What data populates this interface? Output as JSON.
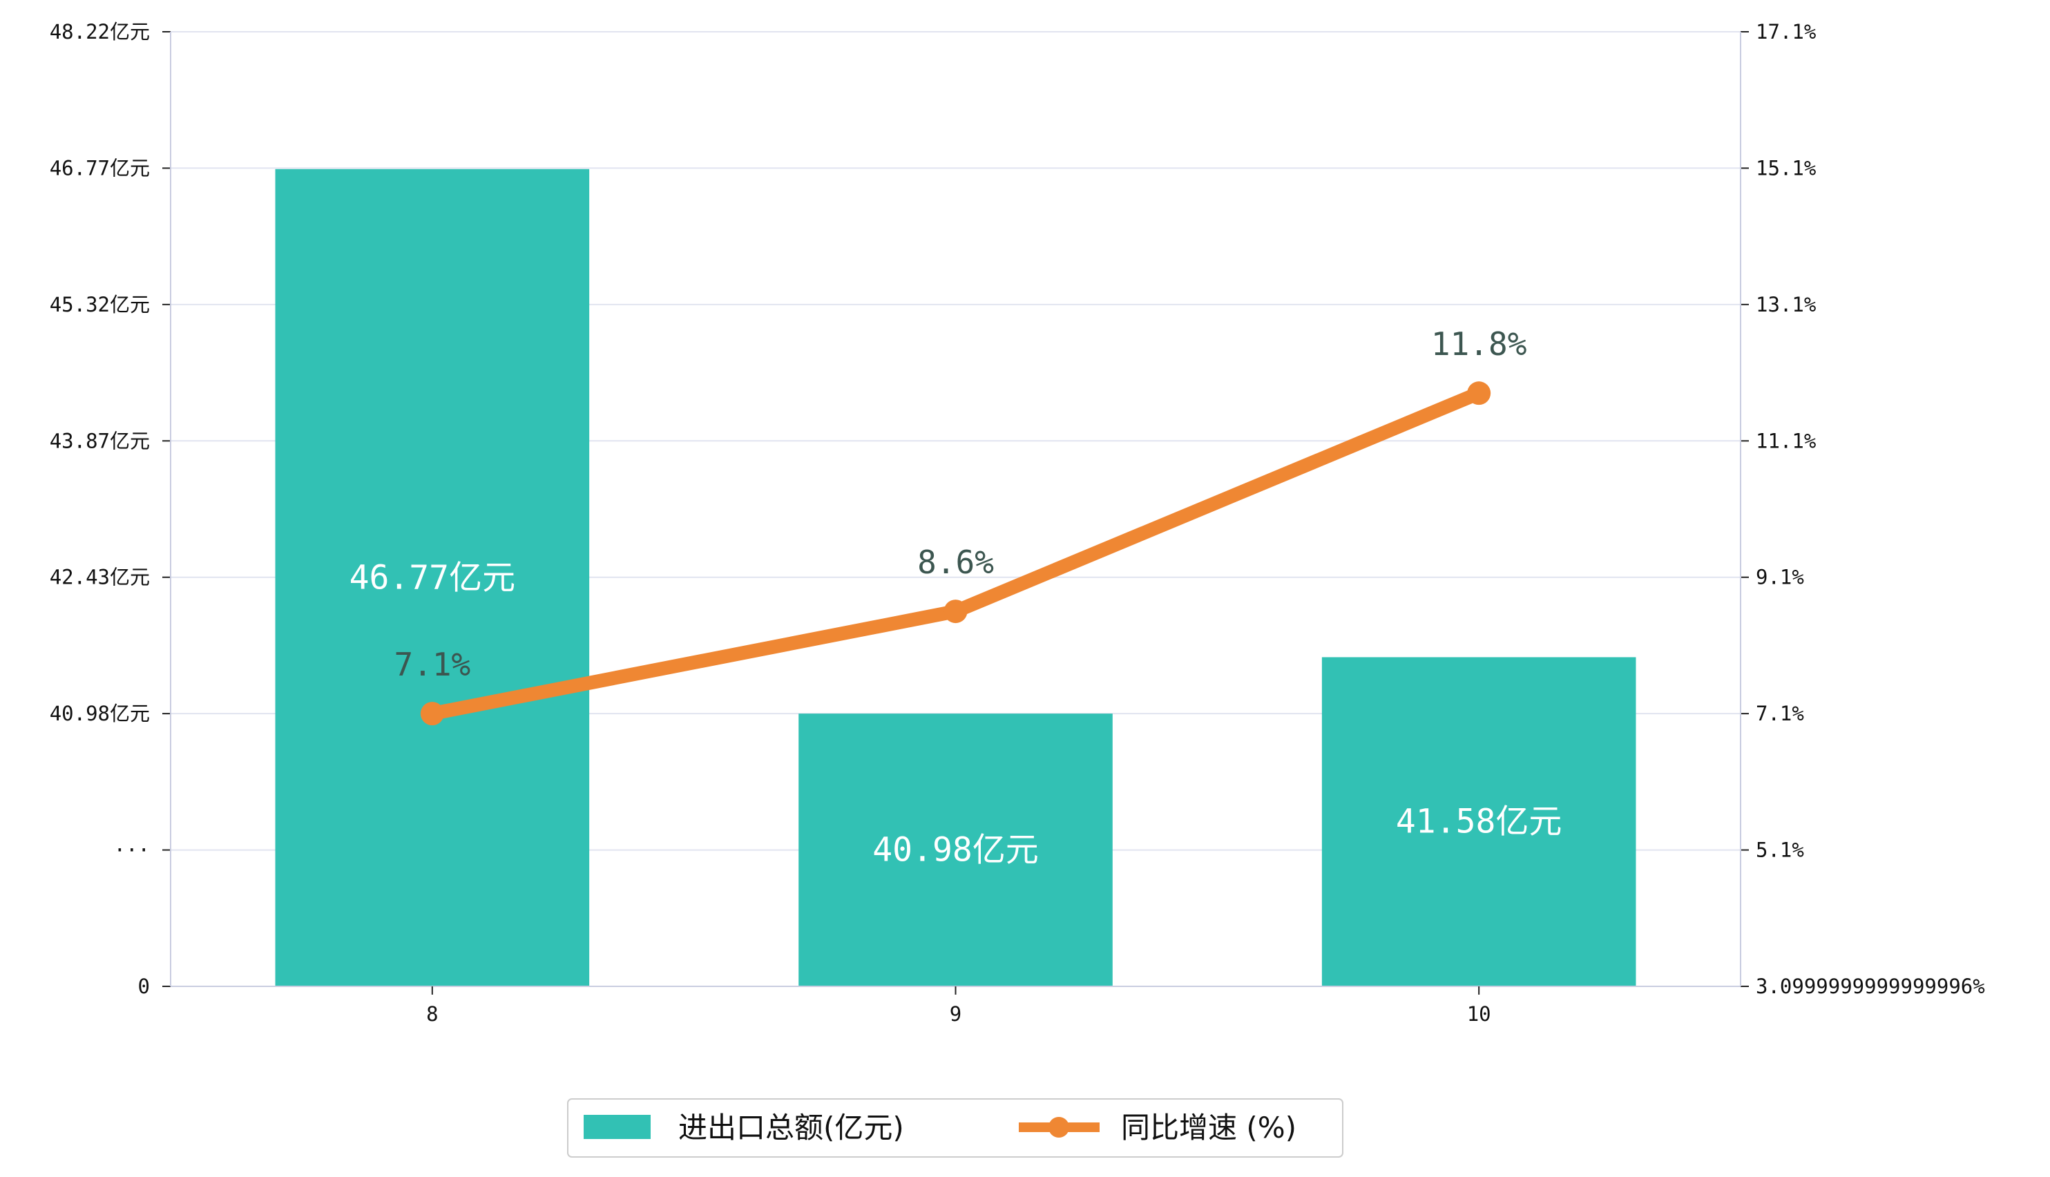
{
  "chart_data": {
    "type": "bar",
    "categories": [
      "8",
      "9",
      "10"
    ],
    "series": [
      {
        "name": "进出口总额(亿元)",
        "type": "bar",
        "axis": "left",
        "color": "#32c1b4",
        "values": [
          46.77,
          40.98,
          41.58
        ],
        "labels": [
          "46.77亿元",
          "40.98亿元",
          "41.58亿元"
        ]
      },
      {
        "name": "同比增速 (%)",
        "type": "line",
        "axis": "right",
        "color": "#ef8733",
        "values": [
          7.1,
          8.6,
          11.8
        ],
        "labels": [
          "7.1%",
          "8.6%",
          "11.8%"
        ]
      }
    ],
    "left_axis": {
      "ticks": [
        0,
        1,
        40.98,
        42.43,
        43.87,
        45.32,
        46.77,
        48.22
      ],
      "tick_labels": [
        "0",
        "···",
        "40.98亿元",
        "42.43亿元",
        "43.87亿元",
        "45.32亿元",
        "46.77亿元",
        "48.22亿元"
      ],
      "axis_break": "···"
    },
    "right_axis": {
      "ylim": [
        3.0999999999999996,
        17.1
      ],
      "ticks": [
        3.0999999999999996,
        5.1,
        7.1,
        9.1,
        11.1,
        13.1,
        15.1,
        17.1
      ],
      "tick_labels": [
        "3.0999999999999996%",
        "5.1%",
        "7.1%",
        "9.1%",
        "11.1%",
        "13.1%",
        "15.1%",
        "17.1%"
      ]
    },
    "grid": true,
    "legend_position": "bottom-center",
    "colors": {
      "bar": "#32c1b4",
      "line": "#ef8733",
      "grid": "#e1e4f0",
      "axis": "#c9cde0"
    }
  }
}
